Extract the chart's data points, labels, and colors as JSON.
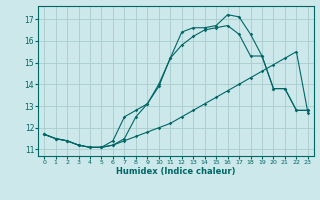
{
  "xlabel": "Humidex (Indice chaleur)",
  "background_color": "#cce8ea",
  "grid_color": "#aacccc",
  "line_color": "#006666",
  "xlim": [
    -0.5,
    23.5
  ],
  "ylim": [
    10.7,
    17.6
  ],
  "xticks": [
    0,
    1,
    2,
    3,
    4,
    5,
    6,
    7,
    8,
    9,
    10,
    11,
    12,
    13,
    14,
    15,
    16,
    17,
    18,
    19,
    20,
    21,
    22,
    23
  ],
  "yticks": [
    11,
    12,
    13,
    14,
    15,
    16,
    17
  ],
  "series1_x": [
    0,
    1,
    2,
    3,
    4,
    5,
    6,
    7,
    8,
    9,
    10,
    11,
    12,
    13,
    14,
    15,
    16,
    17,
    18,
    19,
    20,
    21,
    22,
    23
  ],
  "series1_y": [
    11.7,
    11.5,
    11.4,
    11.2,
    11.1,
    11.1,
    11.2,
    11.5,
    12.5,
    13.1,
    13.9,
    15.2,
    16.4,
    16.6,
    16.6,
    16.7,
    17.2,
    17.1,
    16.3,
    15.3,
    13.8,
    13.8,
    12.8,
    12.8
  ],
  "series2_x": [
    0,
    1,
    2,
    3,
    4,
    5,
    6,
    7,
    8,
    9,
    10,
    11,
    12,
    13,
    14,
    15,
    16,
    17,
    18,
    19,
    20,
    21,
    22,
    23
  ],
  "series2_y": [
    11.7,
    11.5,
    11.4,
    11.2,
    11.1,
    11.1,
    11.4,
    12.5,
    12.8,
    13.1,
    14.0,
    15.2,
    15.8,
    16.2,
    16.5,
    16.6,
    16.7,
    16.3,
    15.3,
    15.3,
    13.8,
    13.8,
    12.8,
    12.8
  ],
  "series3_x": [
    0,
    1,
    2,
    3,
    4,
    5,
    6,
    7,
    8,
    9,
    10,
    11,
    12,
    13,
    14,
    15,
    16,
    17,
    18,
    19,
    20,
    21,
    22,
    23
  ],
  "series3_y": [
    11.7,
    11.5,
    11.4,
    11.2,
    11.1,
    11.1,
    11.2,
    11.4,
    11.6,
    11.8,
    12.0,
    12.2,
    12.5,
    12.8,
    13.1,
    13.4,
    13.7,
    14.0,
    14.3,
    14.6,
    14.9,
    15.2,
    15.5,
    12.7
  ]
}
